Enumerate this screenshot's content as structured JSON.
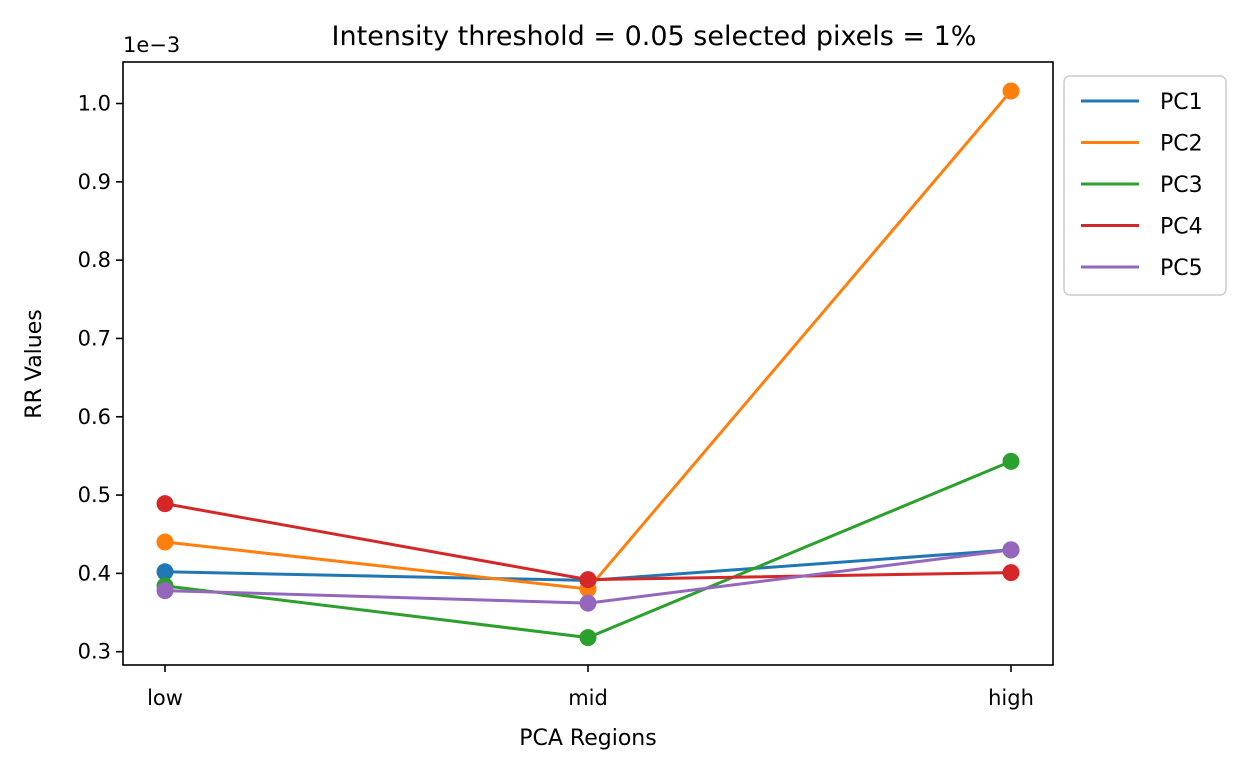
{
  "chart_data": {
    "type": "line",
    "title": "Intensity threshold = 0.05 selected pixels = 1%",
    "xlabel": "PCA Regions",
    "ylabel": "RR Values",
    "offset_label": "1e−3",
    "categories": [
      "low",
      "mid",
      "high"
    ],
    "y_scale_factor": 0.001,
    "ylim": [
      0.283,
      1.053
    ],
    "yticks": [
      0.3,
      0.4,
      0.5,
      0.6,
      0.7,
      0.8,
      0.9,
      1.0
    ],
    "ytick_labels": [
      "0.3",
      "0.4",
      "0.5",
      "0.6",
      "0.7",
      "0.8",
      "0.9",
      "1.0"
    ],
    "grid": false,
    "legend_position": "outside-top-right",
    "series": [
      {
        "name": "PC1",
        "color": "#1f77b4",
        "values": [
          0.402,
          0.391,
          0.43
        ]
      },
      {
        "name": "PC2",
        "color": "#ff7f0e",
        "values": [
          0.44,
          0.38,
          1.016
        ]
      },
      {
        "name": "PC3",
        "color": "#2ca02c",
        "values": [
          0.384,
          0.318,
          0.543
        ]
      },
      {
        "name": "PC4",
        "color": "#d62728",
        "values": [
          0.489,
          0.392,
          0.401
        ]
      },
      {
        "name": "PC5",
        "color": "#9467bd",
        "values": [
          0.378,
          0.362,
          0.43
        ]
      }
    ]
  }
}
